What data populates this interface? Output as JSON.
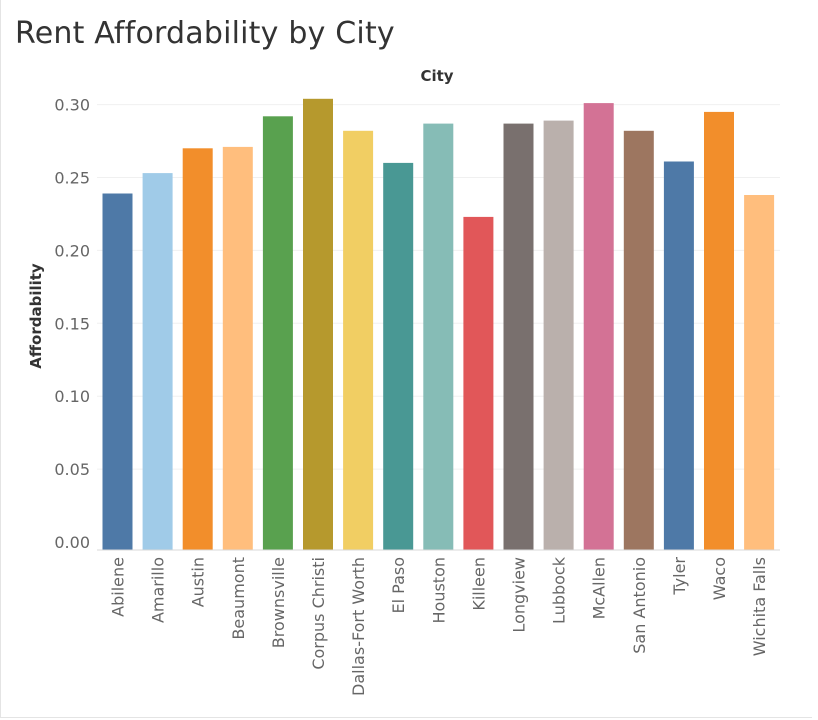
{
  "title": "Rent Affordability by City",
  "chart_data": {
    "type": "bar",
    "title": "Rent Affordability by City",
    "column_header": "City",
    "ylabel": "Affordability",
    "xlabel": "",
    "ylim": [
      0,
      0.3
    ],
    "yticks": [
      "0.00",
      "0.05",
      "0.10",
      "0.15",
      "0.20",
      "0.25",
      "0.30"
    ],
    "ytick_values": [
      0,
      0.05,
      0.1,
      0.15,
      0.2,
      0.25,
      0.3
    ],
    "grid": true,
    "categories": [
      "Abilene",
      "Amarillo",
      "Austin",
      "Beaumont",
      "Brownsville",
      "Corpus Christi",
      "Dallas-Fort Worth",
      "El Paso",
      "Houston",
      "Killeen",
      "Longview",
      "Lubbock",
      "McAllen",
      "San Antonio",
      "Tyler",
      "Waco",
      "Wichita Falls"
    ],
    "values": [
      0.239,
      0.253,
      0.27,
      0.271,
      0.292,
      0.304,
      0.282,
      0.26,
      0.287,
      0.223,
      0.287,
      0.289,
      0.301,
      0.282,
      0.261,
      0.295,
      0.238
    ],
    "colors": [
      "#4e79a7",
      "#a0cbe8",
      "#f28e2b",
      "#ffbe7d",
      "#59a14f",
      "#b6992d",
      "#f1ce63",
      "#499894",
      "#86bcb6",
      "#e15759",
      "#79706e",
      "#bab0ac",
      "#d37295",
      "#9d7660",
      "#4e79a7",
      "#f28e2b",
      "#ffbe7d"
    ]
  }
}
